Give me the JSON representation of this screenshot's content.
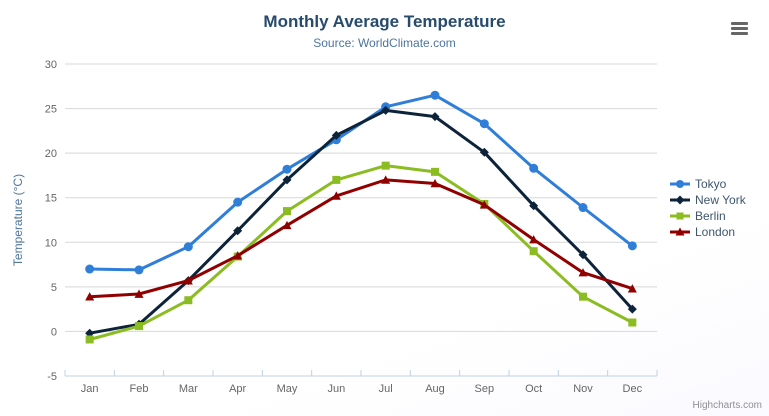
{
  "header": {
    "title": "Monthly Average Temperature",
    "subtitle": "Source: WorldClimate.com"
  },
  "credit": {
    "label": "Highcharts.com"
  },
  "export_button": {
    "icon": "hamburger-icon"
  },
  "colors": {
    "title": "#274b6d",
    "subtitle": "#4d759e",
    "axis_title": "#4d759e",
    "tick_label": "#666666",
    "legend_text": "#3E576F",
    "grid": "#D8D8D8",
    "axis_line": "#C0D0E0",
    "credit": "#909090",
    "menu_icon": "#666666"
  },
  "chart_data": {
    "type": "line",
    "title": "Monthly Average Temperature",
    "subtitle": "Source: WorldClimate.com",
    "categories": [
      "Jan",
      "Feb",
      "Mar",
      "Apr",
      "May",
      "Jun",
      "Jul",
      "Aug",
      "Sep",
      "Oct",
      "Nov",
      "Dec"
    ],
    "series": [
      {
        "name": "Tokyo",
        "color": "#2f7ed8",
        "marker": "circle",
        "values": [
          7.0,
          6.9,
          9.5,
          14.5,
          18.2,
          21.5,
          25.2,
          26.5,
          23.3,
          18.3,
          13.9,
          9.6
        ]
      },
      {
        "name": "New York",
        "color": "#0d233a",
        "marker": "diamond",
        "values": [
          -0.2,
          0.8,
          5.7,
          11.3,
          17.0,
          22.0,
          24.8,
          24.1,
          20.1,
          14.1,
          8.6,
          2.5
        ]
      },
      {
        "name": "Berlin",
        "color": "#8bbc21",
        "marker": "square",
        "values": [
          -0.9,
          0.6,
          3.5,
          8.4,
          13.5,
          17.0,
          18.6,
          17.9,
          14.3,
          9.0,
          3.9,
          1.0
        ]
      },
      {
        "name": "London",
        "color": "#910000",
        "marker": "triangle",
        "values": [
          3.9,
          4.2,
          5.7,
          8.5,
          11.9,
          15.2,
          17.0,
          16.6,
          14.2,
          10.3,
          6.6,
          4.8
        ]
      }
    ],
    "xlabel": "",
    "ylabel": "Temperature (°C)",
    "ylim": [
      -5,
      30
    ],
    "ytick_interval": 5,
    "grid": true,
    "legend_position": "right"
  }
}
